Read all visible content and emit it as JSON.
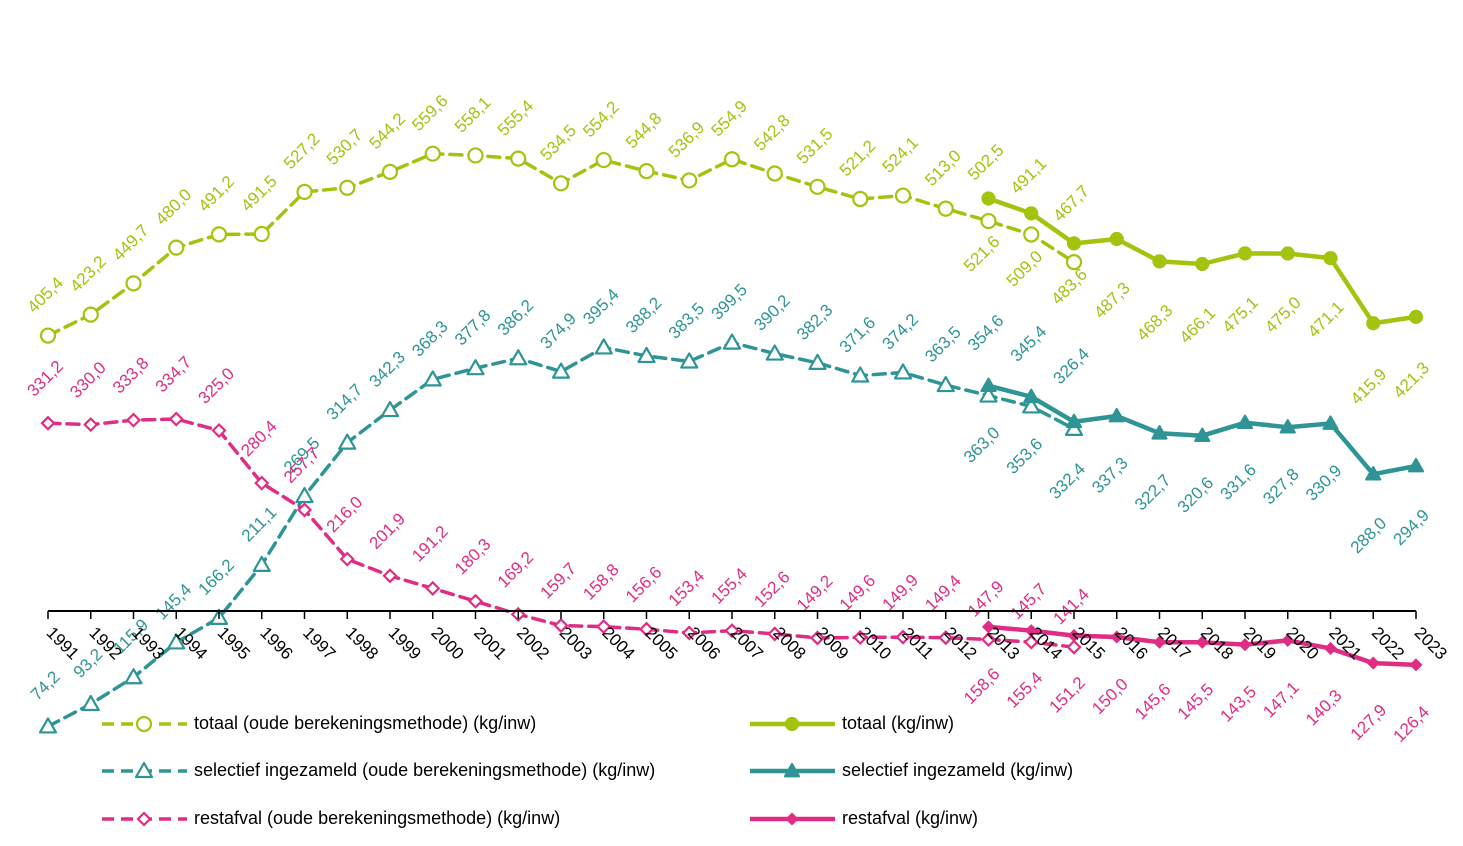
{
  "chart_data": {
    "type": "line",
    "title": "",
    "xlabel": "",
    "ylabel": "",
    "ylim": [
      0,
      600
    ],
    "grid": false,
    "legend_position": "bottom",
    "colors": {
      "totaal": "#a2c40f",
      "selectief": "#2e9496",
      "restafval": "#df2d85"
    },
    "x": [
      1991,
      1992,
      1993,
      1994,
      1995,
      1996,
      1997,
      1998,
      1999,
      2000,
      2001,
      2002,
      2003,
      2004,
      2005,
      2006,
      2007,
      2008,
      2009,
      2010,
      2011,
      2012,
      2013,
      2014,
      2015,
      2016,
      2017,
      2018,
      2019,
      2020,
      2021,
      2022,
      2023
    ],
    "series": [
      {
        "key": "totaal_oud",
        "name": "totaal (oude berekeningsmethode) (kg/inw)",
        "color": "#a2c40f",
        "dashed": true,
        "marker": "circle-open",
        "x": [
          1991,
          1992,
          1993,
          1994,
          1995,
          1996,
          1997,
          1998,
          1999,
          2000,
          2001,
          2002,
          2003,
          2004,
          2005,
          2006,
          2007,
          2008,
          2009,
          2010,
          2011,
          2012,
          2013,
          2014,
          2015
        ],
        "values": [
          405.4,
          423.2,
          449.7,
          480.0,
          491.2,
          491.5,
          527.2,
          530.7,
          544.2,
          559.6,
          558.1,
          555.4,
          534.5,
          554.2,
          544.8,
          536.9,
          554.9,
          542.8,
          531.5,
          521.2,
          524.1,
          513.0,
          502.5,
          491.1,
          467.7
        ],
        "labels": [
          "405,4",
          "423,2",
          "449,7",
          "480,0",
          "491,2",
          "491,5",
          "527,2",
          "530,7",
          "544,2",
          "559,6",
          "558,1",
          "555,4",
          "534,5",
          "554,2",
          "544,8",
          "536,9",
          "554,9",
          "542,8",
          "531,5",
          "521,2",
          "524,1",
          "513,0",
          "502,5",
          "491,1",
          "467,7"
        ]
      },
      {
        "key": "totaal",
        "name": "totaal (kg/inw)",
        "color": "#a2c40f",
        "dashed": false,
        "marker": "circle-filled",
        "x": [
          2013,
          2014,
          2015,
          2016,
          2017,
          2018,
          2019,
          2020,
          2021,
          2022,
          2023
        ],
        "values": [
          521.6,
          509.0,
          483.6,
          487.3,
          468.3,
          466.1,
          475.1,
          475.0,
          471.1,
          415.9,
          421.3
        ],
        "labels": [
          "521,6",
          "509,0",
          "483,6",
          "487,3",
          "468,3",
          "466,1",
          "475,1",
          "475,0",
          "471,1",
          "415,9",
          "421,3"
        ]
      },
      {
        "key": "selectief_oud",
        "name": "selectief ingezameld (oude berekeningsmethode) (kg/inw)",
        "color": "#2e9496",
        "dashed": true,
        "marker": "triangle-open",
        "x": [
          1991,
          1992,
          1993,
          1994,
          1995,
          1996,
          1997,
          1998,
          1999,
          2000,
          2001,
          2002,
          2003,
          2004,
          2005,
          2006,
          2007,
          2008,
          2009,
          2010,
          2011,
          2012,
          2013,
          2014,
          2015
        ],
        "values": [
          74.2,
          93.2,
          115.9,
          145.4,
          166.2,
          211.1,
          269.5,
          314.7,
          342.3,
          368.3,
          377.8,
          386.2,
          374.9,
          395.4,
          388.2,
          383.5,
          399.5,
          390.2,
          382.3,
          371.6,
          374.2,
          363.5,
          354.6,
          345.4,
          326.4
        ],
        "labels": [
          "74,2",
          "93,2",
          "115,9",
          "145,4",
          "166,2",
          "211,1",
          "269,5",
          "314,7",
          "342,3",
          "368,3",
          "377,8",
          "386,2",
          "374,9",
          "395,4",
          "388,2",
          "383,5",
          "399,5",
          "390,2",
          "382,3",
          "371,6",
          "374,2",
          "363,5",
          "354,6",
          "345,4",
          "326,4"
        ]
      },
      {
        "key": "selectief",
        "name": "selectief ingezameld (kg/inw)",
        "color": "#2e9496",
        "dashed": false,
        "marker": "triangle-filled",
        "x": [
          2013,
          2014,
          2015,
          2016,
          2017,
          2018,
          2019,
          2020,
          2021,
          2022,
          2023
        ],
        "values": [
          363.0,
          353.6,
          332.4,
          337.3,
          322.7,
          320.6,
          331.6,
          327.8,
          330.9,
          288.0,
          294.9
        ],
        "labels": [
          "363,0",
          "353,6",
          "332,4",
          "337,3",
          "322,7",
          "320,6",
          "331,6",
          "327,8",
          "330,9",
          "288,0",
          "294,9"
        ]
      },
      {
        "key": "restafval_oud",
        "name": "restafval (oude berekeningsmethode) (kg/inw)",
        "color": "#df2d85",
        "dashed": true,
        "marker": "diamond-open",
        "x": [
          1991,
          1992,
          1993,
          1994,
          1995,
          1996,
          1997,
          1998,
          1999,
          2000,
          2001,
          2002,
          2003,
          2004,
          2005,
          2006,
          2007,
          2008,
          2009,
          2010,
          2011,
          2012,
          2013,
          2014,
          2015
        ],
        "values": [
          331.2,
          330.0,
          333.8,
          334.7,
          325.0,
          280.4,
          257.7,
          216.0,
          201.9,
          191.2,
          180.3,
          169.2,
          159.7,
          158.8,
          156.6,
          153.4,
          155.4,
          152.6,
          149.2,
          149.6,
          149.9,
          149.4,
          147.9,
          145.7,
          141.4
        ],
        "labels": [
          "331,2",
          "330,0",
          "333,8",
          "334,7",
          "325,0",
          "280,4",
          "257,7",
          "216,0",
          "201,9",
          "191,2",
          "180,3",
          "169,2",
          "159,7",
          "158,8",
          "156,6",
          "153,4",
          "155,4",
          "152,6",
          "149,2",
          "149,6",
          "149,9",
          "149,4",
          "147,9",
          "145,7",
          "141,4"
        ]
      },
      {
        "key": "restafval",
        "name": "restafval (kg/inw)",
        "color": "#df2d85",
        "dashed": false,
        "marker": "diamond-filled",
        "x": [
          2013,
          2014,
          2015,
          2016,
          2017,
          2018,
          2019,
          2020,
          2021,
          2022,
          2023
        ],
        "values": [
          158.6,
          155.4,
          151.2,
          150.0,
          145.6,
          145.5,
          143.5,
          147.1,
          140.3,
          127.9,
          126.4
        ],
        "labels": [
          "158,6",
          "155,4",
          "151,2",
          "150,0",
          "145,6",
          "145,5",
          "143,5",
          "147,1",
          "140,3",
          "127,9",
          "126,4"
        ]
      }
    ],
    "legend": [
      "totaal (oude berekeningsmethode) (kg/inw)",
      "totaal (kg/inw)",
      "selectief ingezameld (oude berekeningsmethode) (kg/inw)",
      "selectief ingezameld (kg/inw)",
      "restafval (oude berekeningsmethode) (kg/inw)",
      "restafval (kg/inw)"
    ]
  }
}
